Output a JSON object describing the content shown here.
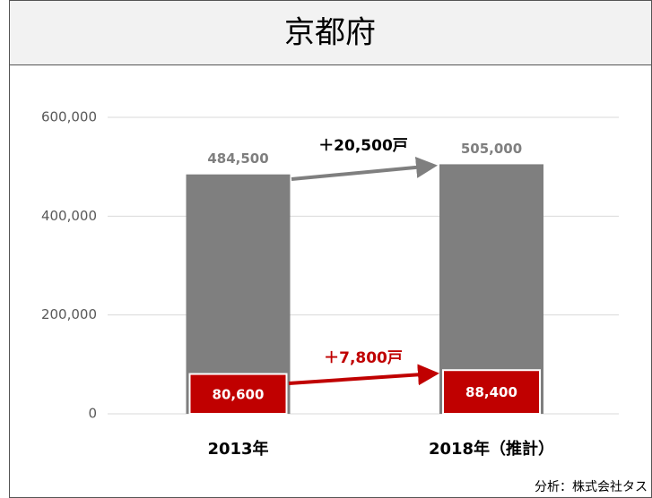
{
  "chart_data": {
    "type": "bar",
    "title": "京都府",
    "categories": [
      "2013年",
      "2018年（推計）"
    ],
    "series": [
      {
        "color": "#7f7f7f",
        "values": [
          484500,
          505000
        ],
        "value_labels": [
          "484,500",
          "505,000"
        ]
      },
      {
        "color": "#c00000",
        "values": [
          80600,
          88400
        ],
        "value_labels": [
          "80,600",
          "88,400"
        ]
      }
    ],
    "ylim": [
      0,
      600000
    ],
    "yticks": [
      0,
      {
        "value": 200000,
        "label": "200,000"
      },
      {
        "value": 400000,
        "label": "400,000"
      },
      {
        "value": 600000,
        "label": "600,000"
      }
    ],
    "grid": true,
    "annotations": [
      "＋20,500戸",
      "＋7,800戸"
    ],
    "source": "分析：株式会社タス"
  }
}
